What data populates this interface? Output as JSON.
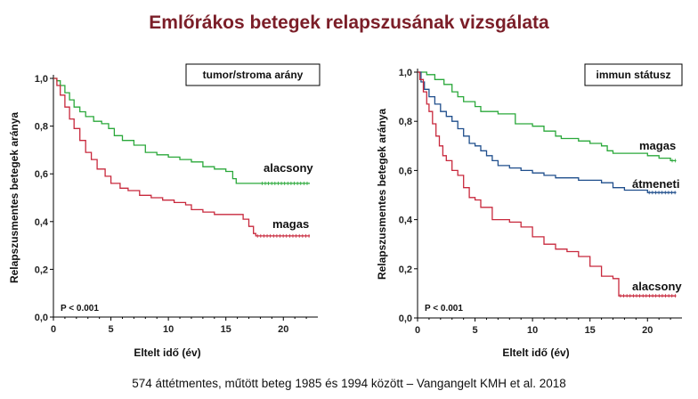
{
  "title": "Emlőrákos betegek relapszusának vizsgálata",
  "footer": "574 áttétmentes, műtött beteg 1985 és 1994 között – Vangangelt KMH et al. 2018",
  "chart_data": [
    {
      "type": "line",
      "subtype": "kaplan-meier",
      "legend_title": "tumor/stroma arány",
      "xlabel": "Eltelt idő (év)",
      "ylabel": "Relapszusmentes betegek aránya",
      "xlim": [
        0,
        23
      ],
      "ylim": [
        0,
        1.0
      ],
      "xticks": [
        "0",
        "5",
        "10",
        "15",
        "20"
      ],
      "yticks": [
        "0,0",
        "0,2",
        "0,4",
        "0,6",
        "0,8",
        "1,0"
      ],
      "pvalue": "P < 0.001",
      "series": [
        {
          "name": "alacsony",
          "color": "#2aa83a",
          "points": [
            [
              0,
              1.0
            ],
            [
              0.3,
              0.99
            ],
            [
              0.6,
              0.97
            ],
            [
              1.0,
              0.94
            ],
            [
              1.4,
              0.91
            ],
            [
              1.8,
              0.88
            ],
            [
              2.3,
              0.86
            ],
            [
              2.8,
              0.84
            ],
            [
              3.5,
              0.82
            ],
            [
              4.2,
              0.81
            ],
            [
              4.8,
              0.79
            ],
            [
              5.3,
              0.76
            ],
            [
              6.0,
              0.74
            ],
            [
              7.0,
              0.72
            ],
            [
              8.0,
              0.69
            ],
            [
              9.0,
              0.68
            ],
            [
              10.0,
              0.67
            ],
            [
              11.0,
              0.66
            ],
            [
              12.0,
              0.65
            ],
            [
              13.0,
              0.63
            ],
            [
              14.0,
              0.62
            ],
            [
              15.0,
              0.61
            ],
            [
              15.6,
              0.58
            ],
            [
              15.9,
              0.56
            ],
            [
              18.0,
              0.56
            ],
            [
              22.3,
              0.56
            ]
          ]
        },
        {
          "name": "magas",
          "color": "#c8283c",
          "points": [
            [
              0,
              1.0
            ],
            [
              0.3,
              0.97
            ],
            [
              0.6,
              0.93
            ],
            [
              1.0,
              0.88
            ],
            [
              1.4,
              0.83
            ],
            [
              1.8,
              0.79
            ],
            [
              2.3,
              0.74
            ],
            [
              2.8,
              0.69
            ],
            [
              3.3,
              0.66
            ],
            [
              3.8,
              0.62
            ],
            [
              4.5,
              0.59
            ],
            [
              5.0,
              0.56
            ],
            [
              5.8,
              0.54
            ],
            [
              6.5,
              0.53
            ],
            [
              7.5,
              0.51
            ],
            [
              8.5,
              0.5
            ],
            [
              9.5,
              0.49
            ],
            [
              10.5,
              0.48
            ],
            [
              11.5,
              0.47
            ],
            [
              12.0,
              0.45
            ],
            [
              13.0,
              0.44
            ],
            [
              14.0,
              0.43
            ],
            [
              16.0,
              0.43
            ],
            [
              16.5,
              0.41
            ],
            [
              17.0,
              0.38
            ],
            [
              17.4,
              0.35
            ],
            [
              17.6,
              0.34
            ],
            [
              22.3,
              0.34
            ]
          ]
        }
      ]
    },
    {
      "type": "line",
      "subtype": "kaplan-meier",
      "legend_title": "immun státusz",
      "xlabel": "Eltelt idő (év)",
      "ylabel": "Relapszusmentes betegek aránya",
      "xlim": [
        0,
        23
      ],
      "ylim": [
        0,
        1.0
      ],
      "xticks": [
        "0",
        "5",
        "10",
        "15",
        "20"
      ],
      "yticks": [
        "0,0",
        "0,2",
        "0,4",
        "0,6",
        "0,8",
        "1,0"
      ],
      "pvalue": "P < 0.001",
      "series": [
        {
          "name": "magas",
          "color": "#2aa83a",
          "points": [
            [
              0,
              1.0
            ],
            [
              0.8,
              0.99
            ],
            [
              1.5,
              0.97
            ],
            [
              2.3,
              0.95
            ],
            [
              3.0,
              0.92
            ],
            [
              3.5,
              0.9
            ],
            [
              4.0,
              0.88
            ],
            [
              5.0,
              0.86
            ],
            [
              5.5,
              0.84
            ],
            [
              7.0,
              0.83
            ],
            [
              8.5,
              0.79
            ],
            [
              10.0,
              0.78
            ],
            [
              11.0,
              0.76
            ],
            [
              12.0,
              0.74
            ],
            [
              12.5,
              0.73
            ],
            [
              14.0,
              0.72
            ],
            [
              15.0,
              0.71
            ],
            [
              16.0,
              0.7
            ],
            [
              16.5,
              0.68
            ],
            [
              17.0,
              0.67
            ],
            [
              20.0,
              0.66
            ],
            [
              21.0,
              0.65
            ],
            [
              22.0,
              0.64
            ],
            [
              22.5,
              0.64
            ]
          ]
        },
        {
          "name": "átmeneti",
          "color": "#1f4e8c",
          "points": [
            [
              0,
              1.0
            ],
            [
              0.3,
              0.96
            ],
            [
              0.6,
              0.93
            ],
            [
              1.0,
              0.9
            ],
            [
              1.5,
              0.87
            ],
            [
              2.0,
              0.84
            ],
            [
              2.5,
              0.82
            ],
            [
              3.0,
              0.8
            ],
            [
              3.5,
              0.77
            ],
            [
              4.0,
              0.74
            ],
            [
              4.5,
              0.71
            ],
            [
              5.0,
              0.7
            ],
            [
              5.5,
              0.68
            ],
            [
              6.0,
              0.66
            ],
            [
              6.5,
              0.64
            ],
            [
              7.0,
              0.62
            ],
            [
              8.0,
              0.61
            ],
            [
              9.0,
              0.6
            ],
            [
              10.0,
              0.59
            ],
            [
              11.0,
              0.58
            ],
            [
              12.0,
              0.57
            ],
            [
              13.0,
              0.57
            ],
            [
              14.0,
              0.56
            ],
            [
              15.0,
              0.56
            ],
            [
              16.0,
              0.55
            ],
            [
              17.0,
              0.53
            ],
            [
              18.0,
              0.52
            ],
            [
              19.0,
              0.52
            ],
            [
              20.0,
              0.51
            ],
            [
              22.5,
              0.51
            ]
          ]
        },
        {
          "name": "alacsony",
          "color": "#c8283c",
          "points": [
            [
              0,
              1.0
            ],
            [
              0.2,
              0.97
            ],
            [
              0.5,
              0.92
            ],
            [
              0.8,
              0.87
            ],
            [
              1.0,
              0.84
            ],
            [
              1.3,
              0.79
            ],
            [
              1.6,
              0.74
            ],
            [
              1.9,
              0.7
            ],
            [
              2.2,
              0.66
            ],
            [
              2.5,
              0.64
            ],
            [
              3.0,
              0.6
            ],
            [
              3.5,
              0.58
            ],
            [
              4.0,
              0.53
            ],
            [
              4.5,
              0.49
            ],
            [
              5.0,
              0.48
            ],
            [
              5.5,
              0.45
            ],
            [
              6.0,
              0.45
            ],
            [
              6.5,
              0.4
            ],
            [
              8.0,
              0.39
            ],
            [
              9.0,
              0.37
            ],
            [
              10.0,
              0.33
            ],
            [
              11.0,
              0.3
            ],
            [
              12.0,
              0.28
            ],
            [
              13.0,
              0.27
            ],
            [
              14.0,
              0.25
            ],
            [
              15.0,
              0.21
            ],
            [
              16.0,
              0.17
            ],
            [
              17.0,
              0.16
            ],
            [
              17.5,
              0.09
            ],
            [
              22.5,
              0.09
            ]
          ]
        }
      ]
    }
  ]
}
